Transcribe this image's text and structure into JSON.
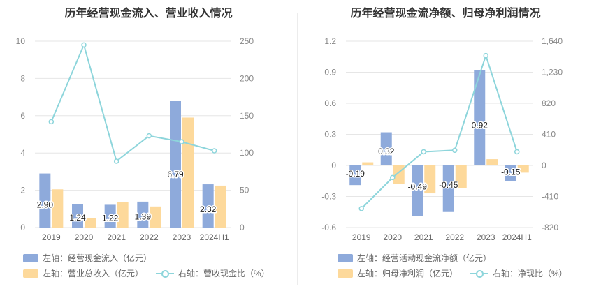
{
  "charts": [
    {
      "id": "left",
      "title": "历年经营现金流入、营业收入情况",
      "legend": [
        {
          "key": "bar1",
          "label": "左轴：经营现金流入（亿元）",
          "kind": "bar"
        },
        {
          "key": "bar2",
          "label": "左轴：营业总收入（亿元）",
          "kind": "bar"
        },
        {
          "key": "line",
          "label": "右轴：营收现金比（%）",
          "kind": "line"
        }
      ]
    },
    {
      "id": "right",
      "title": "历年经营现金流净额、归母净利润情况",
      "legend": [
        {
          "key": "bar1",
          "label": "左轴：经营活动现金流净额（亿元）",
          "kind": "bar"
        },
        {
          "key": "bar2",
          "label": "左轴：归母净利润（亿元）",
          "kind": "bar"
        },
        {
          "key": "line",
          "label": "右轴：净现比（%）",
          "kind": "line"
        }
      ]
    }
  ],
  "colors": {
    "bar1": "#8eaadb",
    "bar2": "#fdd99b",
    "line": "#8dd5db"
  },
  "chart_data": [
    {
      "type": "bar",
      "title": "历年经营现金流入、营业收入情况",
      "categories": [
        "2019",
        "2020",
        "2021",
        "2022",
        "2023",
        "2024H1"
      ],
      "series": [
        {
          "name": "左轴：经营现金流入（亿元）",
          "axis": "left",
          "values": [
            2.9,
            1.24,
            1.22,
            1.39,
            6.79,
            2.32
          ],
          "labels": [
            "2.90",
            "1.24",
            "1.22",
            "1.39",
            "6.79",
            "2.32"
          ]
        },
        {
          "name": "左轴：营业总收入（亿元）",
          "axis": "left",
          "values": [
            2.05,
            0.52,
            1.38,
            1.13,
            5.9,
            2.25
          ]
        },
        {
          "name": "右轴：营收现金比（%）",
          "axis": "right",
          "type": "line",
          "values": [
            142,
            245,
            89,
            123,
            115,
            103
          ]
        }
      ],
      "y_left": {
        "min": 0,
        "max": 10,
        "ticks": [
          "0",
          "2",
          "4",
          "6",
          "8",
          "10"
        ]
      },
      "y_right": {
        "min": 0,
        "max": 250,
        "ticks": [
          "0",
          "50",
          "100",
          "150",
          "200",
          "250"
        ]
      },
      "grid": true,
      "legend_position": "bottom"
    },
    {
      "type": "bar",
      "title": "历年经营现金流净额、归母净利润情况",
      "categories": [
        "2019",
        "2020",
        "2021",
        "2022",
        "2023",
        "2024H1"
      ],
      "series": [
        {
          "name": "左轴：经营活动现金流净额（亿元）",
          "axis": "left",
          "values": [
            -0.19,
            0.32,
            -0.49,
            -0.45,
            0.92,
            -0.15
          ],
          "labels": [
            "-0.19",
            "0.32",
            "-0.49",
            "-0.45",
            "0.92",
            "-0.15"
          ]
        },
        {
          "name": "左轴：归母净利润（亿元）",
          "axis": "left",
          "values": [
            0.03,
            -0.18,
            -0.27,
            -0.22,
            0.06,
            -0.07
          ]
        },
        {
          "name": "右轴：净现比（%）",
          "axis": "right",
          "type": "line",
          "values": [
            -570,
            -160,
            180,
            200,
            1450,
            180
          ]
        }
      ],
      "y_left": {
        "min": -0.6,
        "max": 1.2,
        "ticks": [
          "-0.6",
          "-0.3",
          "0",
          "0.3",
          "0.6",
          "0.9",
          "1.2"
        ]
      },
      "y_right": {
        "min": -820,
        "max": 1640,
        "ticks": [
          "-820",
          "-410",
          "0",
          "410",
          "820",
          "1,230",
          "1,640"
        ]
      },
      "grid": true,
      "legend_position": "bottom"
    }
  ]
}
